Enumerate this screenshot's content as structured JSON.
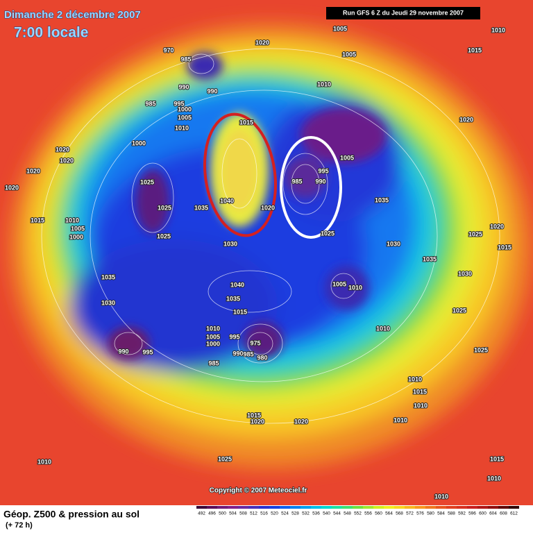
{
  "header": {
    "date": "Dimanche 2 décembre 2007",
    "time": "7:00 locale",
    "run": "Run GFS 6 Z du Jeudi 29 novembre 2007"
  },
  "copyright": "Copyright © 2007 Meteociel.fr",
  "footer": {
    "title": "Géop. Z500 & pression au sol",
    "lead": "(+ 72 h)"
  },
  "legend": {
    "values": [
      492,
      496,
      500,
      504,
      508,
      512,
      516,
      520,
      524,
      528,
      532,
      536,
      540,
      544,
      548,
      552,
      556,
      560,
      564,
      568,
      572,
      576,
      580,
      584,
      588,
      592,
      596,
      600,
      604,
      608,
      612
    ],
    "colors": [
      "#3a0a3a",
      "#5a0f5a",
      "#701c78",
      "#80208a",
      "#6a2aa0",
      "#4a30b8",
      "#2a30d0",
      "#1840e0",
      "#1060f0",
      "#0880f0",
      "#00a0f0",
      "#00c0e8",
      "#00d8d0",
      "#20e0a0",
      "#40e070",
      "#70e040",
      "#a0e830",
      "#d0f020",
      "#f0f020",
      "#f8d820",
      "#f8b820",
      "#f89820",
      "#f07820",
      "#e85820",
      "#e04020",
      "#d83020",
      "#c82020",
      "#b01818",
      "#901010",
      "#600808",
      "#300404"
    ]
  },
  "pressure_labels": [
    1020,
    1005,
    1010,
    1015,
    1005,
    970,
    985,
    990,
    990,
    1010,
    985,
    995,
    1000,
    1005,
    1010,
    1020,
    1015,
    1000,
    1020,
    1020,
    1020,
    1005,
    995,
    985,
    990,
    1025,
    1020,
    1035,
    1040,
    1020,
    1025,
    1035,
    1015,
    1010,
    1005,
    1000,
    1025,
    1025,
    1020,
    1025,
    1030,
    1030,
    1015,
    1035,
    1035,
    1040,
    1005,
    1010,
    1030,
    1035,
    1015,
    1030,
    1025,
    1010,
    1010,
    1005,
    1000,
    995,
    975,
    990,
    980,
    985,
    990,
    995,
    985,
    1025,
    1010,
    1015,
    1010,
    1015,
    1020,
    1020,
    1010,
    1010,
    1025,
    1015,
    1010,
    1010
  ]
}
